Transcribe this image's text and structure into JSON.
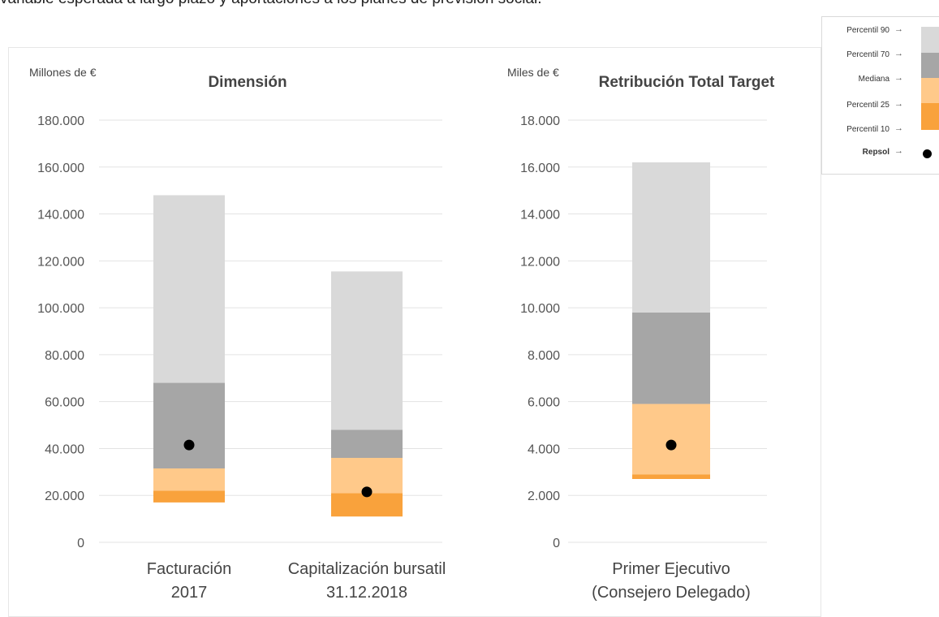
{
  "header": {
    "partial_text": "variable esperada a largo plazo y aportaciones a los planes de previsión social."
  },
  "legend": {
    "items": [
      {
        "label": "Percentil 90",
        "color": "#d9d9d9"
      },
      {
        "label": "Percentil 70",
        "color": "#a6a6a6"
      },
      {
        "label": "Mediana",
        "color": "#ffc98a"
      },
      {
        "label": "Percentil 25",
        "color": "#f9a23c"
      },
      {
        "label": "Percentil 10",
        "color": ""
      },
      {
        "label": "Repsol",
        "color": "#000000"
      }
    ]
  },
  "chart_data": [
    {
      "type": "bar",
      "title": "Dimensión",
      "unit_label": "Millones de €",
      "ylim": [
        0,
        180000
      ],
      "yticks": [
        0,
        20000,
        40000,
        60000,
        80000,
        100000,
        120000,
        140000,
        160000,
        180000
      ],
      "ytick_labels": [
        "0",
        "20.000",
        "40.000",
        "60.000",
        "80.000",
        "100.000",
        "120.000",
        "140.000",
        "160.000",
        "180.000"
      ],
      "grid": true,
      "categories": [
        {
          "lines": [
            "Facturación",
            "2017"
          ]
        },
        {
          "lines": [
            "Capitalización bursatil",
            "31.12.2018"
          ]
        }
      ],
      "series": [
        {
          "name": "Percentil 10",
          "values": [
            17000,
            11000
          ]
        },
        {
          "name": "Percentil 25",
          "values": [
            22000,
            21000
          ]
        },
        {
          "name": "Mediana",
          "values": [
            31500,
            36000
          ]
        },
        {
          "name": "Percentil 70",
          "values": [
            68000,
            48000
          ]
        },
        {
          "name": "Percentil 90",
          "values": [
            148000,
            115500
          ]
        },
        {
          "name": "Repsol",
          "values": [
            41500,
            21500
          ]
        }
      ]
    },
    {
      "type": "bar",
      "title": "Retribución Total Target",
      "unit_label": "Miles de €",
      "ylim": [
        0,
        18000
      ],
      "yticks": [
        0,
        2000,
        4000,
        6000,
        8000,
        10000,
        12000,
        14000,
        16000,
        18000
      ],
      "ytick_labels": [
        "0",
        "2.000",
        "4.000",
        "6.000",
        "8.000",
        "10.000",
        "12.000",
        "14.000",
        "16.000",
        "18.000"
      ],
      "grid": true,
      "categories": [
        {
          "lines": [
            "Primer Ejecutivo",
            "(Consejero Delegado)"
          ]
        }
      ],
      "series": [
        {
          "name": "Percentil 10",
          "values": [
            2700
          ]
        },
        {
          "name": "Percentil 25",
          "values": [
            2900
          ]
        },
        {
          "name": "Mediana",
          "values": [
            5900
          ]
        },
        {
          "name": "Percentil 70",
          "values": [
            9800
          ]
        },
        {
          "name": "Percentil 90",
          "values": [
            16200
          ]
        },
        {
          "name": "Repsol",
          "values": [
            4150
          ]
        }
      ]
    }
  ]
}
